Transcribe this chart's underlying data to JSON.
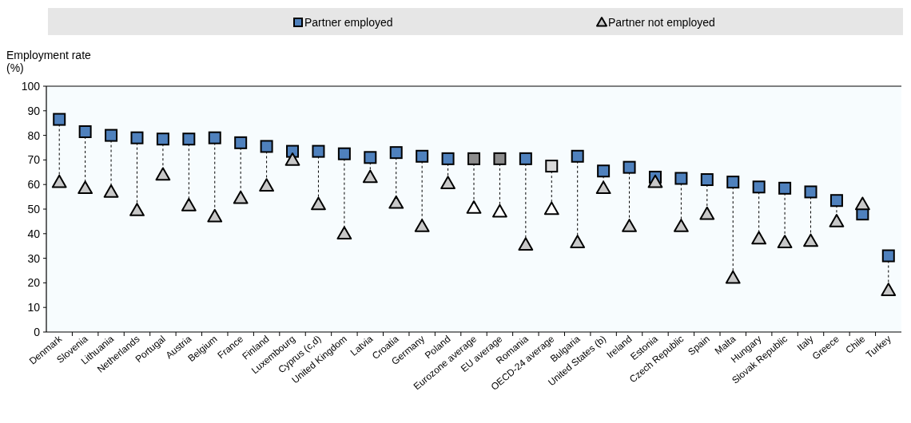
{
  "chart_data": {
    "type": "scatter",
    "ylabel": "Employment rate (%)",
    "legend": "top",
    "categories": [
      "Denmark",
      "Slovenia",
      "Lithuania",
      "Netherlands",
      "Portugal",
      "Austria",
      "Belgium",
      "France",
      "Finland",
      "Luxembourg",
      "Cyprus (c,d)",
      "United Kingdom",
      "Latvia",
      "Croatia",
      "Germany",
      "Poland",
      "Eurozone average",
      "EU average",
      "Romania",
      "OECD-24 average",
      "Bulgaria",
      "United States (b)",
      "Ireland",
      "Estonia",
      "Czech Republic",
      "Spain",
      "Malta",
      "Hungary",
      "Slovak Republic",
      "Italy",
      "Greece",
      "Chile",
      "Turkey"
    ],
    "ylim": [
      0,
      100
    ],
    "yticks": [
      0,
      10,
      20,
      30,
      40,
      50,
      60,
      70,
      80,
      90,
      100
    ],
    "series": [
      {
        "name": "Partner employed",
        "marker": "square",
        "color": "#4f81bd",
        "colors": [
          "#4f81bd",
          "#4f81bd",
          "#4f81bd",
          "#4f81bd",
          "#4f81bd",
          "#4f81bd",
          "#4f81bd",
          "#4f81bd",
          "#4f81bd",
          "#4f81bd",
          "#4f81bd",
          "#4f81bd",
          "#4f81bd",
          "#4f81bd",
          "#4f81bd",
          "#4f81bd",
          "#8c8c8c",
          "#8c8c8c",
          "#4f81bd",
          "#d9d9d9",
          "#4f81bd",
          "#4f81bd",
          "#4f81bd",
          "#4f81bd",
          "#4f81bd",
          "#4f81bd",
          "#4f81bd",
          "#4f81bd",
          "#4f81bd",
          "#4f81bd",
          "#4f81bd",
          "#4f81bd",
          "#4f81bd"
        ],
        "values": [
          86.5,
          81.5,
          80,
          79,
          78.5,
          78.5,
          79,
          77,
          75.5,
          73.5,
          73.5,
          72.5,
          71,
          73,
          71.5,
          70.5,
          70.5,
          70.5,
          70.5,
          67.5,
          71.5,
          65.5,
          67,
          63,
          62.5,
          62,
          61,
          59,
          58.5,
          57,
          53.5,
          48,
          31
        ]
      },
      {
        "name": "Partner not employed",
        "marker": "triangle",
        "color": "#c8c8c8",
        "colors": [
          "#c8c8c8",
          "#c8c8c8",
          "#c8c8c8",
          "#c8c8c8",
          "#c8c8c8",
          "#c8c8c8",
          "#c8c8c8",
          "#c8c8c8",
          "#c8c8c8",
          "#c8c8c8",
          "#c8c8c8",
          "#c8c8c8",
          "#c8c8c8",
          "#c8c8c8",
          "#c8c8c8",
          "#c8c8c8",
          "#ffffff",
          "#ffffff",
          "#c8c8c8",
          "#ffffff",
          "#c8c8c8",
          "#c8c8c8",
          "#c8c8c8",
          "#c8c8c8",
          "#c8c8c8",
          "#c8c8c8",
          "#c8c8c8",
          "#c8c8c8",
          "#c8c8c8",
          "#c8c8c8",
          "#c8c8c8",
          "#c8c8c8",
          "#c8c8c8"
        ],
        "values": [
          61,
          58.5,
          57,
          49.5,
          64,
          51.5,
          47,
          54.5,
          59.5,
          70,
          52,
          40,
          63,
          52.5,
          43,
          60.5,
          50.5,
          49,
          35.5,
          50,
          36.5,
          58.5,
          43,
          61,
          43,
          48,
          22,
          38,
          36.5,
          37,
          45,
          52,
          17
        ]
      }
    ]
  }
}
